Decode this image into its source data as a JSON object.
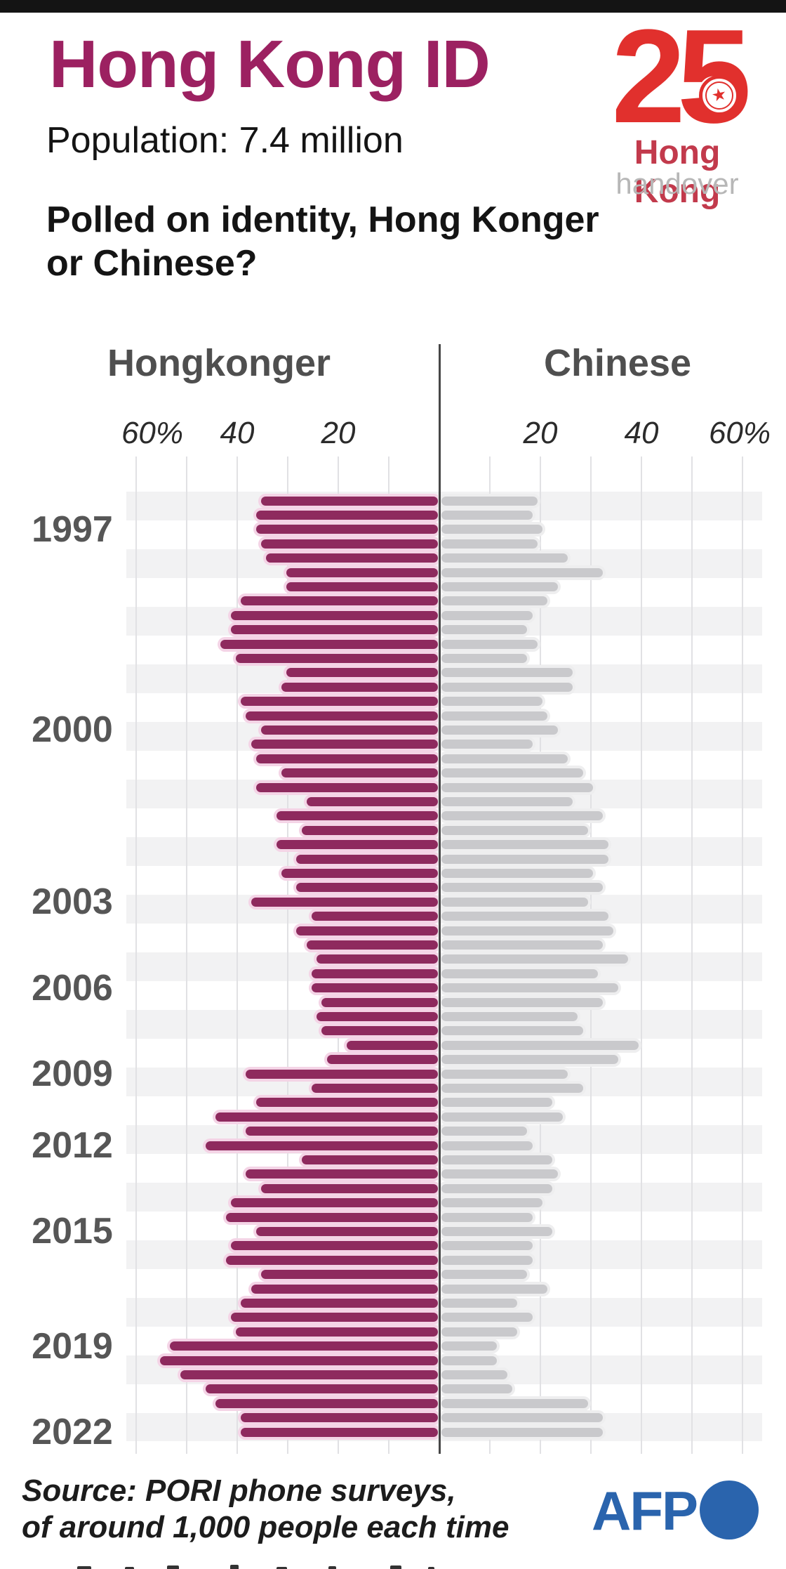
{
  "page": {
    "background": "#ffffff",
    "top_bar_color": "#141414"
  },
  "header": {
    "title": "Hong Kong ID",
    "subtitle": "Population: 7.4 million",
    "question_line1": "Polled on identity, Hong Konger",
    "question_line2": "or Chinese?"
  },
  "anniversary_logo": {
    "number": "25",
    "star": "★",
    "line1": "Hong Kong",
    "line2": "handover",
    "number_color": "#e1302d",
    "line1_color": "#c23a4c",
    "line2_color": "#b7b7b7"
  },
  "chart_data": {
    "type": "bar",
    "variant": "diverging-horizontal",
    "left_series_label": "Hongkonger",
    "right_series_label": "Chinese",
    "axis_ticks_left": [
      "60%",
      "40",
      "20"
    ],
    "axis_ticks_right": [
      "20",
      "40",
      "60%"
    ],
    "axis_max": 60,
    "gridline_step": 10,
    "unit": "percent",
    "rows": 66,
    "year_labels": {
      "3": "1997",
      "17": "2000",
      "29": "2003",
      "35": "2006",
      "41": "2009",
      "46": "2012",
      "52": "2015",
      "60": "2019",
      "66": "2022"
    },
    "series": [
      {
        "name": "Hongkonger",
        "color": "#8e2a5e",
        "halo_color": "#f4d4e6",
        "values": [
          35,
          36,
          36,
          35,
          34,
          30,
          30,
          39,
          41,
          41,
          43,
          40,
          30,
          31,
          39,
          38,
          35,
          37,
          36,
          31,
          36,
          26,
          32,
          27,
          32,
          28,
          31,
          28,
          37,
          25,
          28,
          26,
          24,
          25,
          25,
          23,
          24,
          23,
          18,
          22,
          38,
          25,
          36,
          44,
          38,
          46,
          27,
          38,
          35,
          41,
          42,
          36,
          41,
          42,
          35,
          37,
          39,
          41,
          40,
          53,
          55,
          51,
          46,
          44,
          39,
          39
        ]
      },
      {
        "name": "Chinese",
        "color": "#c9c9cc",
        "halo_color": "#eeeeef",
        "values": [
          19,
          18,
          20,
          19,
          25,
          32,
          23,
          21,
          18,
          17,
          19,
          17,
          26,
          26,
          20,
          21,
          23,
          18,
          25,
          28,
          30,
          26,
          32,
          29,
          33,
          33,
          30,
          32,
          29,
          33,
          34,
          32,
          37,
          31,
          35,
          32,
          27,
          28,
          39,
          35,
          25,
          28,
          22,
          24,
          17,
          18,
          22,
          23,
          22,
          20,
          18,
          22,
          18,
          18,
          17,
          21,
          15,
          18,
          15,
          11,
          11,
          13,
          14,
          29,
          32,
          32
        ]
      }
    ]
  },
  "footer": {
    "source_line1": "Source: PORI phone surveys,",
    "source_line2": "of around 1,000 people each time",
    "agency": "AFP"
  },
  "colors": {
    "title": "#9c2161",
    "headings": "#4f4f4f",
    "year_labels": "#565656",
    "axis_text": "#2b2b2b",
    "center_line": "#474747",
    "gridline": "#e1e1e4",
    "zebra_band": "#f2f2f3",
    "afp_blue": "#2a64ad",
    "text": "#141414"
  }
}
